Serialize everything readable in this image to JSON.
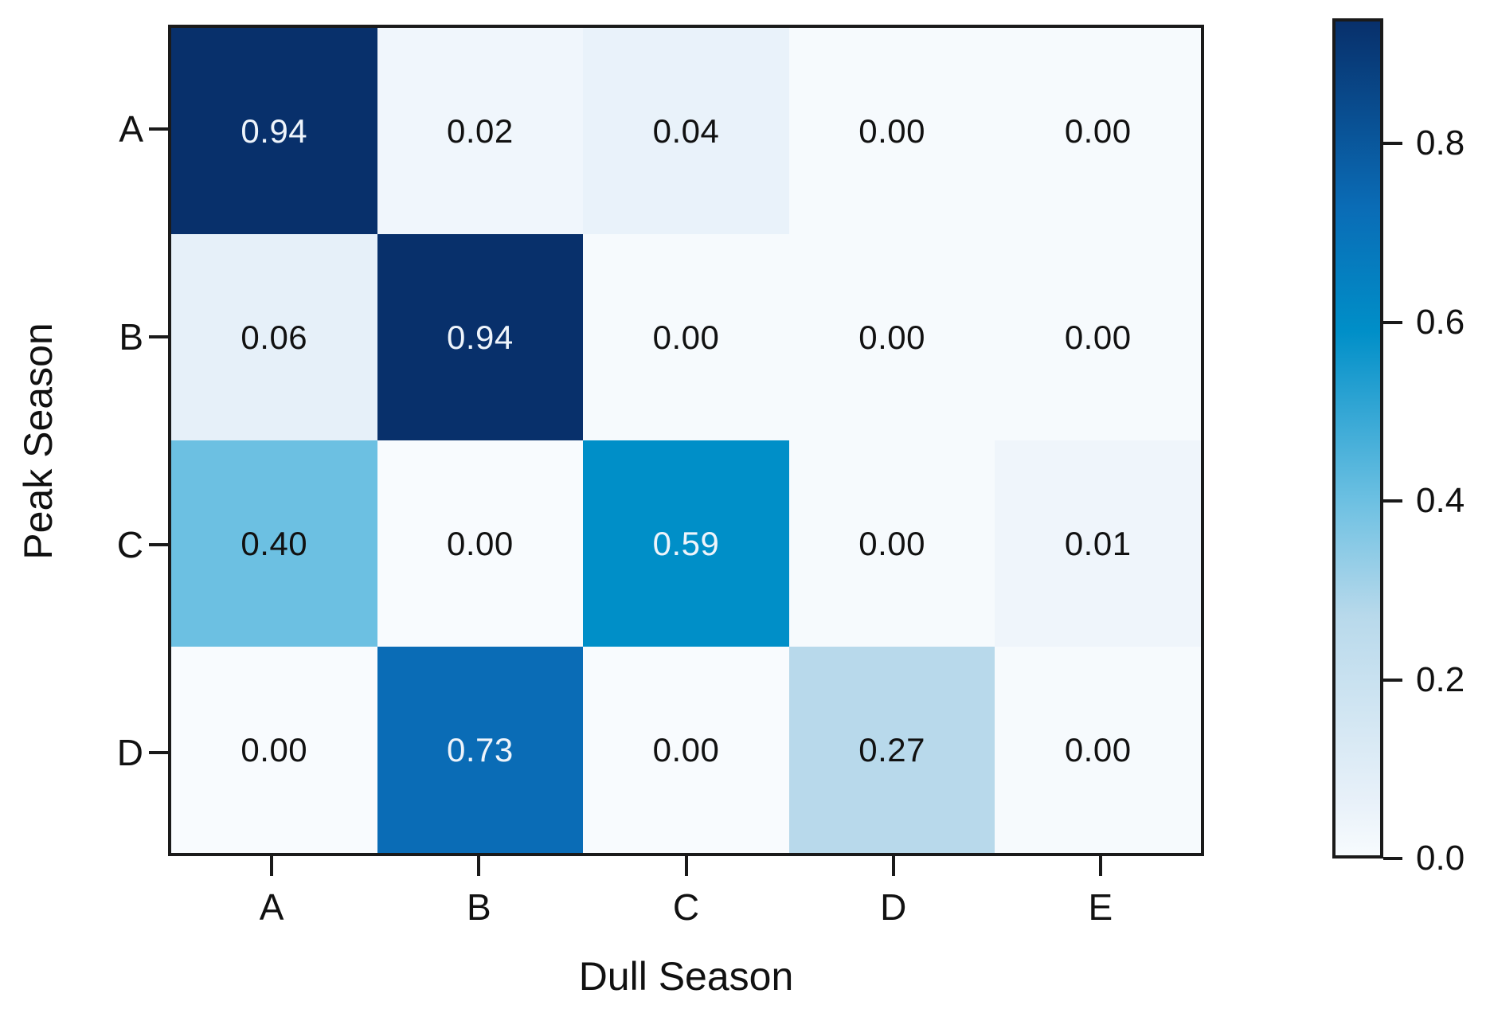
{
  "chart_data": {
    "type": "heatmap",
    "title": "",
    "xlabel": "Dull Season",
    "ylabel": "Peak Season",
    "x_categories": [
      "A",
      "B",
      "C",
      "D",
      "E"
    ],
    "y_categories": [
      "A",
      "B",
      "C",
      "D"
    ],
    "values": [
      [
        0.94,
        0.02,
        0.04,
        0.0,
        0.0
      ],
      [
        0.06,
        0.94,
        0.0,
        0.0,
        0.0
      ],
      [
        0.4,
        0.0,
        0.59,
        0.0,
        0.01
      ],
      [
        0.0,
        0.73,
        0.0,
        0.27,
        0.0
      ]
    ],
    "labels": [
      [
        "0.94",
        "0.02",
        "0.04",
        "0.00",
        "0.00"
      ],
      [
        "0.06",
        "0.94",
        "0.00",
        "0.00",
        "0.00"
      ],
      [
        "0.40",
        "0.00",
        "0.59",
        "0.00",
        "0.01"
      ],
      [
        "0.00",
        "0.73",
        "0.00",
        "0.27",
        "0.00"
      ]
    ],
    "cell_colors": [
      [
        "#08306b",
        "#f0f6fc",
        "#e9f2fa",
        "#f6fafd",
        "#f6fafd"
      ],
      [
        "#e6f0f9",
        "#08306b",
        "#f6fafd",
        "#f6fafd",
        "#f6fafd"
      ],
      [
        "#6cc0e2",
        "#f8fbfe",
        "#008fc8",
        "#f6fafd",
        "#eff5fb"
      ],
      [
        "#f8fbfe",
        "#0a6cb6",
        "#f8fbfe",
        "#b8d9eb",
        "#f6fafd"
      ]
    ],
    "text_colors": {
      "light": "#eef4fb",
      "dark": "#111111"
    },
    "light_text_threshold": 0.5,
    "colormap": "Blues",
    "vmin": 0.0,
    "vmax": 0.94,
    "grid": false,
    "legend": "none",
    "colorbar": {
      "tick_labels": [
        "0.8",
        "0.6",
        "0.4",
        "0.2",
        "0.0"
      ],
      "tick_values": [
        0.8,
        0.6,
        0.4,
        0.2,
        0.0
      ],
      "gradient_stops": [
        {
          "pos": 0.0,
          "color": "#f7fbfe"
        },
        {
          "pos": 0.064,
          "color": "#e8f1f9"
        },
        {
          "pos": 0.287,
          "color": "#b8d9eb"
        },
        {
          "pos": 0.426,
          "color": "#6cc0e2"
        },
        {
          "pos": 0.628,
          "color": "#008fc8"
        },
        {
          "pos": 0.777,
          "color": "#0a6cb6"
        },
        {
          "pos": 1.0,
          "color": "#08306b"
        }
      ]
    },
    "axis_color": "#1a1a1a"
  }
}
